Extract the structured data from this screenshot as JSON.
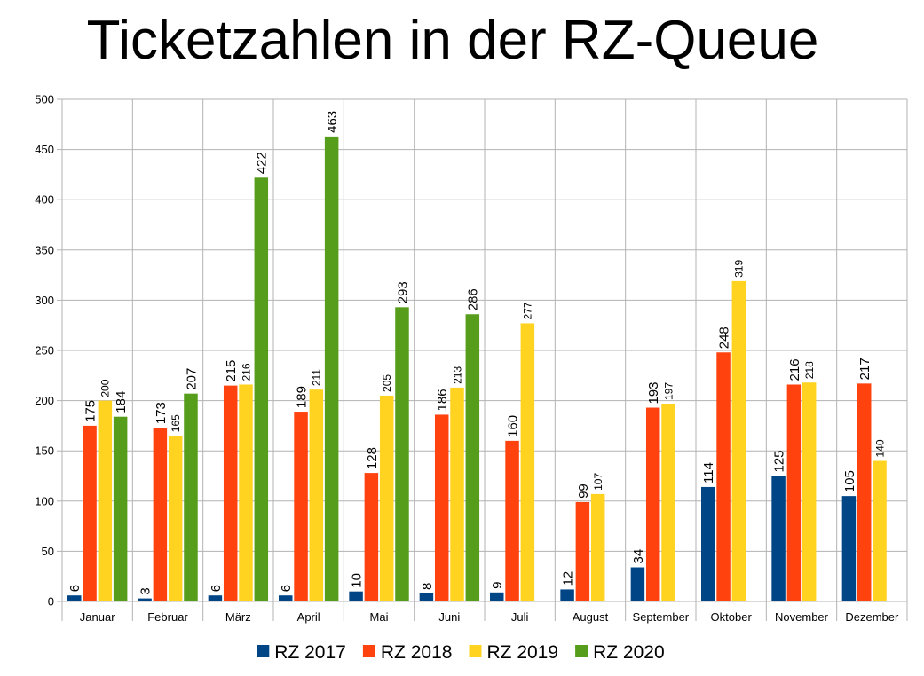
{
  "chart_data": {
    "type": "bar",
    "title": "Ticketzahlen in der RZ-Queue",
    "xlabel": "",
    "ylabel": "",
    "ylim": [
      0,
      500
    ],
    "yticks": [
      0,
      50,
      100,
      150,
      200,
      250,
      300,
      350,
      400,
      450,
      500
    ],
    "grid": true,
    "legend_position": "bottom",
    "categories": [
      "Januar",
      "Februar",
      "März",
      "April",
      "Mai",
      "Juni",
      "Juli",
      "August",
      "September",
      "Oktober",
      "November",
      "Dezember"
    ],
    "series": [
      {
        "name": "RZ 2017",
        "color": "#004586",
        "values": [
          6,
          3,
          6,
          6,
          10,
          8,
          9,
          12,
          34,
          114,
          125,
          105
        ]
      },
      {
        "name": "RZ 2018",
        "color": "#ff420e",
        "values": [
          175,
          173,
          215,
          189,
          128,
          186,
          160,
          99,
          193,
          248,
          216,
          217
        ]
      },
      {
        "name": "RZ 2019",
        "color": "#ffd320",
        "values": [
          200,
          165,
          216,
          211,
          205,
          213,
          277,
          107,
          197,
          319,
          218,
          140
        ]
      },
      {
        "name": "RZ 2020",
        "color": "#579d1c",
        "values": [
          184,
          207,
          422,
          463,
          293,
          286,
          null,
          null,
          null,
          null,
          null,
          null
        ]
      }
    ]
  }
}
